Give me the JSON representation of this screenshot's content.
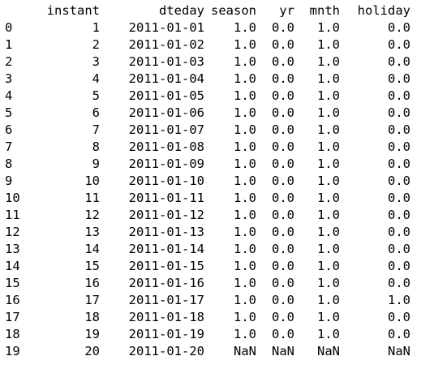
{
  "dataframe": {
    "columns": [
      "instant",
      "dteday",
      "season",
      "yr",
      "mnth",
      "holiday"
    ],
    "rows": [
      {
        "index": "0",
        "cells": [
          "1",
          "2011-01-01",
          "1.0",
          "0.0",
          "1.0",
          "0.0"
        ]
      },
      {
        "index": "1",
        "cells": [
          "2",
          "2011-01-02",
          "1.0",
          "0.0",
          "1.0",
          "0.0"
        ]
      },
      {
        "index": "2",
        "cells": [
          "3",
          "2011-01-03",
          "1.0",
          "0.0",
          "1.0",
          "0.0"
        ]
      },
      {
        "index": "3",
        "cells": [
          "4",
          "2011-01-04",
          "1.0",
          "0.0",
          "1.0",
          "0.0"
        ]
      },
      {
        "index": "4",
        "cells": [
          "5",
          "2011-01-05",
          "1.0",
          "0.0",
          "1.0",
          "0.0"
        ]
      },
      {
        "index": "5",
        "cells": [
          "6",
          "2011-01-06",
          "1.0",
          "0.0",
          "1.0",
          "0.0"
        ]
      },
      {
        "index": "6",
        "cells": [
          "7",
          "2011-01-07",
          "1.0",
          "0.0",
          "1.0",
          "0.0"
        ]
      },
      {
        "index": "7",
        "cells": [
          "8",
          "2011-01-08",
          "1.0",
          "0.0",
          "1.0",
          "0.0"
        ]
      },
      {
        "index": "8",
        "cells": [
          "9",
          "2011-01-09",
          "1.0",
          "0.0",
          "1.0",
          "0.0"
        ]
      },
      {
        "index": "9",
        "cells": [
          "10",
          "2011-01-10",
          "1.0",
          "0.0",
          "1.0",
          "0.0"
        ]
      },
      {
        "index": "10",
        "cells": [
          "11",
          "2011-01-11",
          "1.0",
          "0.0",
          "1.0",
          "0.0"
        ]
      },
      {
        "index": "11",
        "cells": [
          "12",
          "2011-01-12",
          "1.0",
          "0.0",
          "1.0",
          "0.0"
        ]
      },
      {
        "index": "12",
        "cells": [
          "13",
          "2011-01-13",
          "1.0",
          "0.0",
          "1.0",
          "0.0"
        ]
      },
      {
        "index": "13",
        "cells": [
          "14",
          "2011-01-14",
          "1.0",
          "0.0",
          "1.0",
          "0.0"
        ]
      },
      {
        "index": "14",
        "cells": [
          "15",
          "2011-01-15",
          "1.0",
          "0.0",
          "1.0",
          "0.0"
        ]
      },
      {
        "index": "15",
        "cells": [
          "16",
          "2011-01-16",
          "1.0",
          "0.0",
          "1.0",
          "0.0"
        ]
      },
      {
        "index": "16",
        "cells": [
          "17",
          "2011-01-17",
          "1.0",
          "0.0",
          "1.0",
          "1.0"
        ]
      },
      {
        "index": "17",
        "cells": [
          "18",
          "2011-01-18",
          "1.0",
          "0.0",
          "1.0",
          "0.0"
        ]
      },
      {
        "index": "18",
        "cells": [
          "19",
          "2011-01-19",
          "1.0",
          "0.0",
          "1.0",
          "0.0"
        ]
      },
      {
        "index": "19",
        "cells": [
          "20",
          "2011-01-20",
          "NaN",
          "NaN",
          "NaN",
          "NaN"
        ]
      }
    ]
  }
}
